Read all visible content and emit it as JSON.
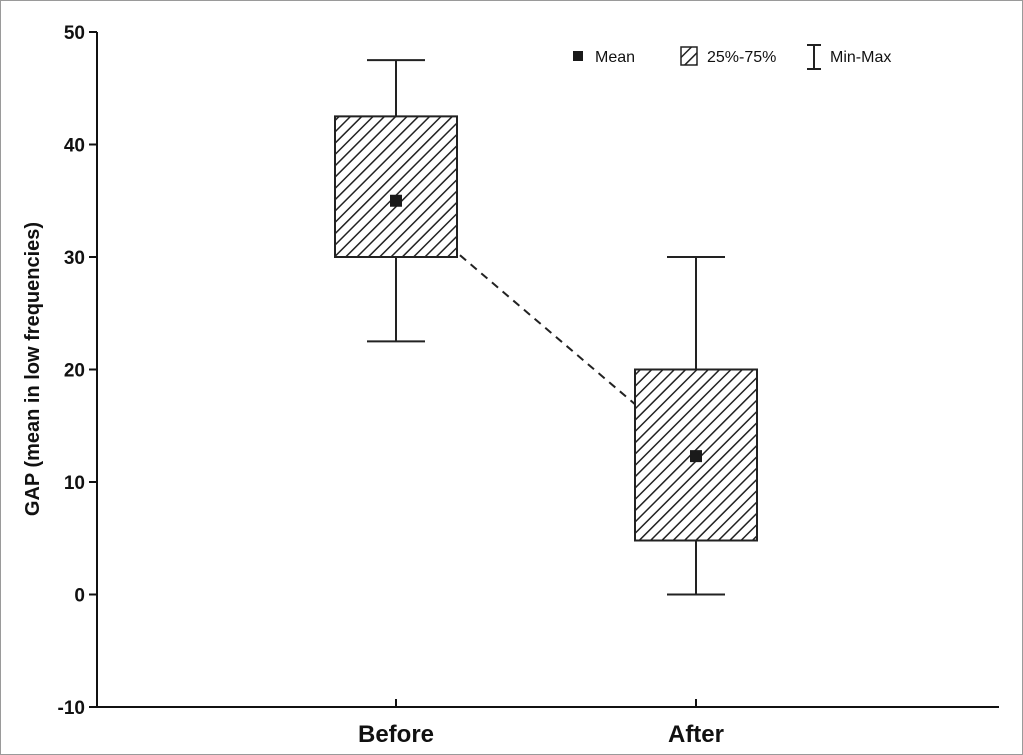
{
  "chart_data": {
    "type": "box",
    "ylabel": "GAP (mean in low frequencies)",
    "xlabel": "",
    "ylim": [
      -10,
      50
    ],
    "yticks": [
      50,
      40,
      30,
      20,
      10,
      0,
      -10
    ],
    "categories": [
      "Before",
      "After"
    ],
    "boxes": [
      {
        "category": "Before",
        "mean": 35,
        "q1": 30,
        "q3": 42.5,
        "min": 22.5,
        "max": 47.5
      },
      {
        "category": "After",
        "mean": 12.3,
        "q1": 4.8,
        "q3": 20,
        "min": 0,
        "max": 30
      }
    ],
    "mean_connector": "dashed",
    "grid": false,
    "legend_position": "top-right",
    "legend": {
      "mean_label": "Mean",
      "box_label": "25%-75%",
      "whisker_label": "Min-Max"
    },
    "colors": {
      "box_hatch": "#222222",
      "mean_marker": "#1a1a1a",
      "axis": "#111111"
    }
  }
}
